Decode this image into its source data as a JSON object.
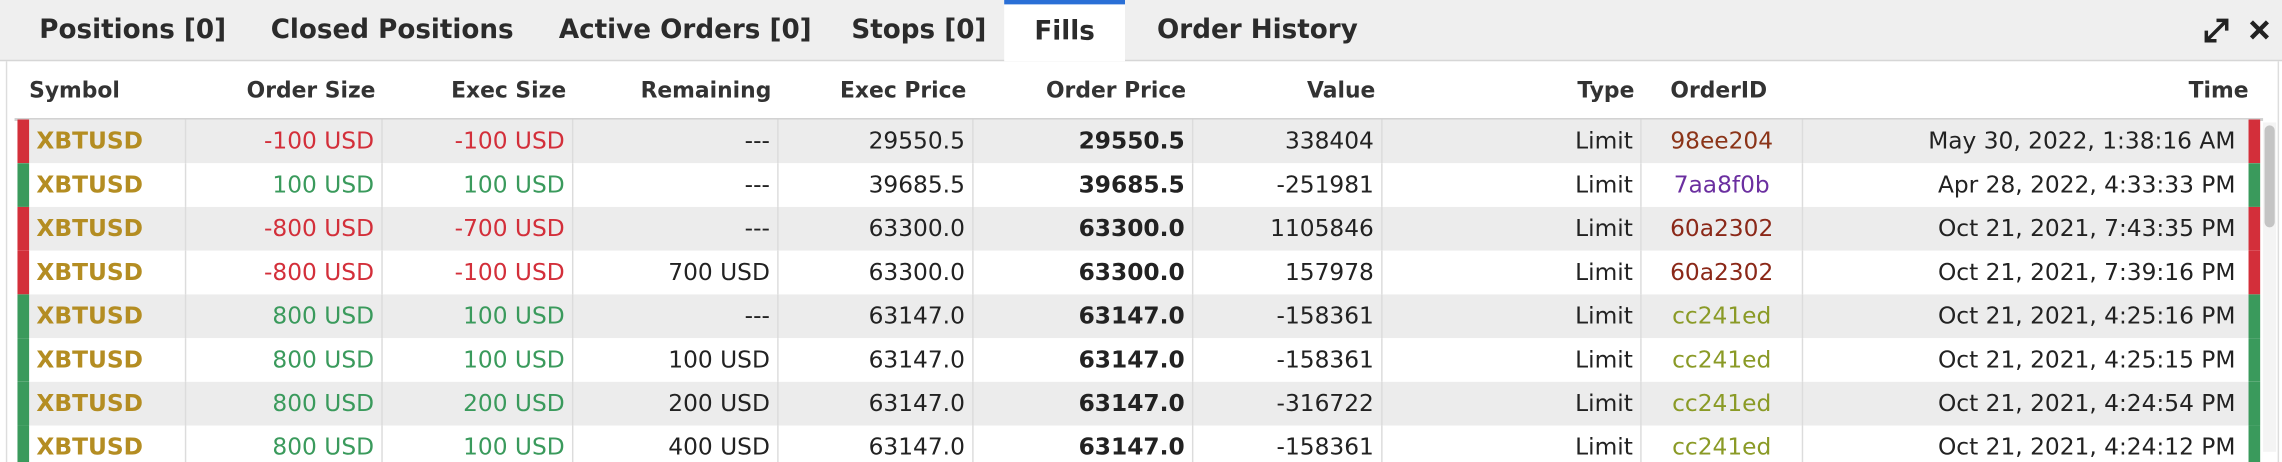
{
  "tabs": [
    "Positions [0]",
    "Closed Positions",
    "Active Orders [0]",
    "Stops [0]",
    "Fills",
    "Order History"
  ],
  "active_tab": 4,
  "table": {
    "headers": [
      "Symbol",
      "Order Size",
      "Exec Size",
      "Remaining",
      "Exec Price",
      "Order Price",
      "Value",
      "Type",
      "OrderID",
      "Time"
    ],
    "rows": [
      {
        "cells": [
          "XBTUSD",
          "-100 USD",
          "-100 USD",
          "---",
          "29550.5",
          "29550.5",
          "338404",
          "Limit",
          "98ee204",
          "May 30, 2022, 1:38:16 AM"
        ],
        "id_color": "#8b3418"
      },
      {
        "cells": [
          "XBTUSD",
          "100 USD",
          "100 USD",
          "---",
          "39685.5",
          "39685.5",
          "-251981",
          "Limit",
          "7aa8f0b",
          "Apr 28, 2022, 4:33:33 PM"
        ],
        "id_color": "#6b2fa0"
      },
      {
        "cells": [
          "XBTUSD",
          "-800 USD",
          "-700 USD",
          "---",
          "63300.0",
          "63300.0",
          "1105846",
          "Limit",
          "60a2302",
          "Oct 21, 2021, 7:43:35 PM"
        ],
        "id_color": "#8b2818"
      },
      {
        "cells": [
          "XBTUSD",
          "-800 USD",
          "-100 USD",
          "700 USD",
          "63300.0",
          "63300.0",
          "157978",
          "Limit",
          "60a2302",
          "Oct 21, 2021, 7:39:16 PM"
        ],
        "id_color": "#8b2818"
      },
      {
        "cells": [
          "XBTUSD",
          "800 USD",
          "100 USD",
          "---",
          "63147.0",
          "63147.0",
          "-158361",
          "Limit",
          "cc241ed",
          "Oct 21, 2021, 4:25:16 PM"
        ],
        "id_color": "#8a9a26"
      },
      {
        "cells": [
          "XBTUSD",
          "800 USD",
          "100 USD",
          "100 USD",
          "63147.0",
          "63147.0",
          "-158361",
          "Limit",
          "cc241ed",
          "Oct 21, 2021, 4:25:15 PM"
        ],
        "id_color": "#8a9a26"
      },
      {
        "cells": [
          "XBTUSD",
          "800 USD",
          "200 USD",
          "200 USD",
          "63147.0",
          "63147.0",
          "-316722",
          "Limit",
          "cc241ed",
          "Oct 21, 2021, 4:24:54 PM"
        ],
        "id_color": "#8a9a26"
      },
      {
        "cells": [
          "XBTUSD",
          "800 USD",
          "100 USD",
          "400 USD",
          "63147.0",
          "63147.0",
          "-158361",
          "Limit",
          "cc241ed",
          "Oct 21, 2021, 4:24:12 PM"
        ],
        "id_color": "#8a9a26"
      }
    ]
  }
}
